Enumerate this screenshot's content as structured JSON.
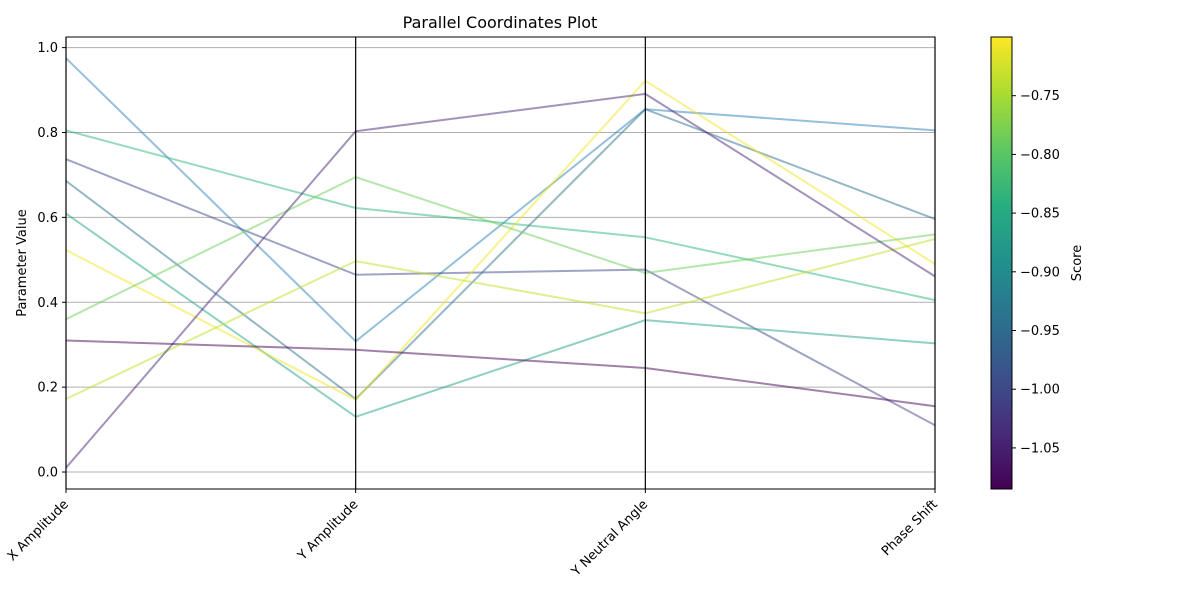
{
  "chart_data": {
    "type": "parallel-coordinates",
    "title": "Parallel Coordinates Plot",
    "ylabel": "Parameter Value",
    "categories": [
      "X Amplitude",
      "Y Amplitude",
      "Y Neutral Angle",
      "Phase Shift"
    ],
    "ylim": [
      -0.04,
      1.025
    ],
    "yticks": [
      "0.0",
      "0.2",
      "0.4",
      "0.6",
      "0.8",
      "1.0"
    ],
    "grid": true,
    "colorbar": {
      "label": "Score",
      "colormap": "viridis",
      "range": [
        -1.085,
        -0.7
      ],
      "ticks": [
        "−1.05",
        "−1.00",
        "−0.95",
        "−0.90",
        "−0.85",
        "−0.80",
        "−0.75"
      ]
    },
    "series": [
      {
        "values": [
          0.975,
          0.308,
          0.855,
          0.805
        ],
        "score": -0.95,
        "color": "#2c7fb8"
      },
      {
        "values": [
          0.805,
          0.622,
          0.553,
          0.405
        ],
        "score": -0.84,
        "color": "#2db67a"
      },
      {
        "values": [
          0.737,
          0.465,
          0.477,
          0.11
        ],
        "score": -1.0,
        "color": "#3d4a89"
      },
      {
        "values": [
          0.686,
          0.172,
          0.855,
          0.596
        ],
        "score": -0.94,
        "color": "#2d708e"
      },
      {
        "values": [
          0.609,
          0.13,
          0.358,
          0.303
        ],
        "score": -0.87,
        "color": "#1fa187"
      },
      {
        "values": [
          0.523,
          0.17,
          0.922,
          0.49
        ],
        "score": -0.71,
        "color": "#f1e51d"
      },
      {
        "values": [
          0.36,
          0.695,
          0.469,
          0.56
        ],
        "score": -0.79,
        "color": "#6ccd5a"
      },
      {
        "values": [
          0.31,
          0.288,
          0.245,
          0.155
        ],
        "score": -1.07,
        "color": "#440154"
      },
      {
        "values": [
          0.172,
          0.497,
          0.374,
          0.549
        ],
        "score": -0.73,
        "color": "#bddf26"
      },
      {
        "values": [
          0.01,
          0.803,
          0.891,
          0.461
        ],
        "score": -1.03,
        "color": "#482878"
      }
    ]
  }
}
